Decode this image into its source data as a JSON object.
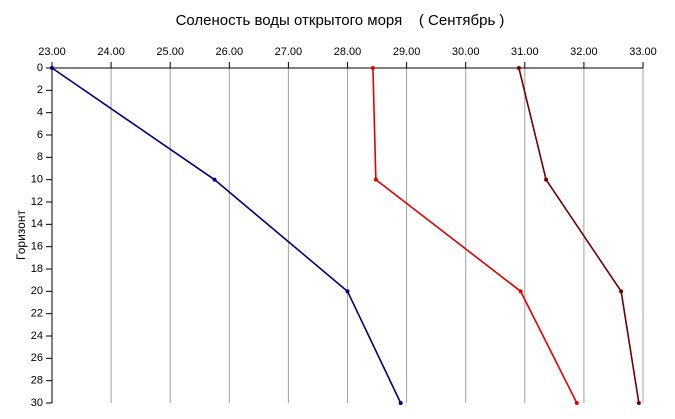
{
  "chart_data": {
    "type": "line",
    "orientation": "horizontal",
    "title": "Соленость воды открытого моря    ( Сентябрь )",
    "y_label": "Горизонт",
    "y": [
      0,
      10,
      20,
      30
    ],
    "series": [
      {
        "color": "#000080",
        "values": [
          23.0,
          25.75,
          28.0,
          28.9
        ]
      },
      {
        "color": "#e00000",
        "values": [
          28.43,
          28.48,
          30.93,
          31.88
        ]
      },
      {
        "color": "#700000",
        "values": [
          30.9,
          31.36,
          32.63,
          32.93
        ]
      }
    ],
    "xlim": [
      23,
      33
    ],
    "xticks": [
      {
        "value": 23,
        "label": "23.00"
      },
      {
        "value": 24,
        "label": "24.00"
      },
      {
        "value": 25,
        "label": "25.00"
      },
      {
        "value": 26,
        "label": "26.00"
      },
      {
        "value": 27,
        "label": "27.00"
      },
      {
        "value": 28,
        "label": "28.00"
      },
      {
        "value": 29,
        "label": "29.00"
      },
      {
        "value": 30,
        "label": "30.00"
      },
      {
        "value": 31,
        "label": "31.00"
      },
      {
        "value": 32,
        "label": "32.00"
      },
      {
        "value": 33,
        "label": "33.00"
      }
    ],
    "ylim": [
      0,
      30
    ],
    "yticks": [
      0,
      2,
      4,
      6,
      8,
      10,
      12,
      14,
      16,
      18,
      20,
      22,
      24,
      26,
      28,
      30
    ],
    "y_inverted": true,
    "grid": true
  }
}
